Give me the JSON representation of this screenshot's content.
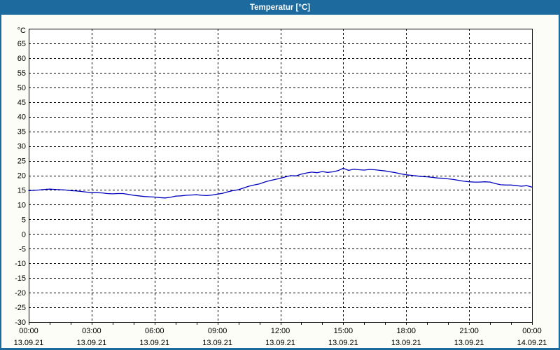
{
  "window": {
    "title": "Temperatur [°C]"
  },
  "colors": {
    "titlebar_bg": "#1d6a9e",
    "titlebar_text": "#ffffff",
    "content_bg": "#fbfdf6",
    "plot_bg": "#ffffff",
    "grid": "#000000",
    "axis": "#000000",
    "line": "#0000bf",
    "label_text": "#000000"
  },
  "chart_data": {
    "type": "line",
    "title": "Temperatur [°C]",
    "series_name": "Temperatur",
    "y_axis_unit": "°C",
    "ylim": [
      -30,
      70
    ],
    "xlim_hours": [
      0,
      24
    ],
    "grid": "dashed",
    "legend": "none",
    "y_ticks": [
      65,
      60,
      55,
      50,
      45,
      40,
      35,
      30,
      25,
      20,
      15,
      10,
      5,
      0,
      -5,
      -10,
      -15,
      -20,
      -25,
      -30
    ],
    "x_ticks": [
      {
        "h": 0,
        "time": "00:00",
        "date": "13.09.21"
      },
      {
        "h": 3,
        "time": "03:00",
        "date": "13.09.21"
      },
      {
        "h": 6,
        "time": "06:00",
        "date": "13.09.21"
      },
      {
        "h": 9,
        "time": "09:00",
        "date": "13.09.21"
      },
      {
        "h": 12,
        "time": "12:00",
        "date": "13.09.21"
      },
      {
        "h": 15,
        "time": "15:00",
        "date": "13.09.21"
      },
      {
        "h": 18,
        "time": "18:00",
        "date": "13.09.21"
      },
      {
        "h": 21,
        "time": "21:00",
        "date": "13.09.21"
      },
      {
        "h": 24,
        "time": "00:00",
        "date": "14.09.21"
      }
    ],
    "minor_x_tick_every_hours": 1,
    "points": [
      [
        0.0,
        14.8
      ],
      [
        0.25,
        14.9
      ],
      [
        0.5,
        15.0
      ],
      [
        0.75,
        15.2
      ],
      [
        1.0,
        15.3
      ],
      [
        1.25,
        15.2
      ],
      [
        1.5,
        15.1
      ],
      [
        1.75,
        15.0
      ],
      [
        2.0,
        14.8
      ],
      [
        2.25,
        14.7
      ],
      [
        2.5,
        14.5
      ],
      [
        2.75,
        14.3
      ],
      [
        3.0,
        14.1
      ],
      [
        3.25,
        14.1
      ],
      [
        3.5,
        14.0
      ],
      [
        3.75,
        13.8
      ],
      [
        4.0,
        13.7
      ],
      [
        4.25,
        13.8
      ],
      [
        4.5,
        13.8
      ],
      [
        4.75,
        13.5
      ],
      [
        5.0,
        13.2
      ],
      [
        5.25,
        13.0
      ],
      [
        5.5,
        12.8
      ],
      [
        5.75,
        12.7
      ],
      [
        6.0,
        12.6
      ],
      [
        6.25,
        12.4
      ],
      [
        6.5,
        12.3
      ],
      [
        6.75,
        12.5
      ],
      [
        7.0,
        12.9
      ],
      [
        7.25,
        13.0
      ],
      [
        7.5,
        13.2
      ],
      [
        7.75,
        13.3
      ],
      [
        8.0,
        13.4
      ],
      [
        8.25,
        13.2
      ],
      [
        8.5,
        13.1
      ],
      [
        8.75,
        13.3
      ],
      [
        9.0,
        13.6
      ],
      [
        9.25,
        13.9
      ],
      [
        9.5,
        14.4
      ],
      [
        9.75,
        14.8
      ],
      [
        10.0,
        15.1
      ],
      [
        10.25,
        15.7
      ],
      [
        10.5,
        16.3
      ],
      [
        10.75,
        16.7
      ],
      [
        11.0,
        17.1
      ],
      [
        11.25,
        17.7
      ],
      [
        11.5,
        18.2
      ],
      [
        11.75,
        18.6
      ],
      [
        12.0,
        19.0
      ],
      [
        12.25,
        19.5
      ],
      [
        12.5,
        19.9
      ],
      [
        12.75,
        19.8
      ],
      [
        13.0,
        20.4
      ],
      [
        13.25,
        20.8
      ],
      [
        13.5,
        21.1
      ],
      [
        13.75,
        20.9
      ],
      [
        14.0,
        21.3
      ],
      [
        14.25,
        21.0
      ],
      [
        14.5,
        21.2
      ],
      [
        14.75,
        21.6
      ],
      [
        15.0,
        22.4
      ],
      [
        15.25,
        21.7
      ],
      [
        15.5,
        22.1
      ],
      [
        15.75,
        21.9
      ],
      [
        16.0,
        21.8
      ],
      [
        16.25,
        22.0
      ],
      [
        16.5,
        21.9
      ],
      [
        16.75,
        21.7
      ],
      [
        17.0,
        21.5
      ],
      [
        17.25,
        21.2
      ],
      [
        17.5,
        20.9
      ],
      [
        17.75,
        20.5
      ],
      [
        18.0,
        20.2
      ],
      [
        18.25,
        20.0
      ],
      [
        18.5,
        19.8
      ],
      [
        18.75,
        19.6
      ],
      [
        19.0,
        19.5
      ],
      [
        19.25,
        19.3
      ],
      [
        19.5,
        19.1
      ],
      [
        19.75,
        19.0
      ],
      [
        20.0,
        18.8
      ],
      [
        20.25,
        18.6
      ],
      [
        20.5,
        18.3
      ],
      [
        20.75,
        18.0
      ],
      [
        21.0,
        17.8
      ],
      [
        21.25,
        17.7
      ],
      [
        21.5,
        17.7
      ],
      [
        21.75,
        17.8
      ],
      [
        22.0,
        17.7
      ],
      [
        22.25,
        17.2
      ],
      [
        22.5,
        16.8
      ],
      [
        22.75,
        16.7
      ],
      [
        23.0,
        16.7
      ],
      [
        23.25,
        16.5
      ],
      [
        23.5,
        16.3
      ],
      [
        23.75,
        16.5
      ],
      [
        24.0,
        16.0
      ]
    ]
  }
}
